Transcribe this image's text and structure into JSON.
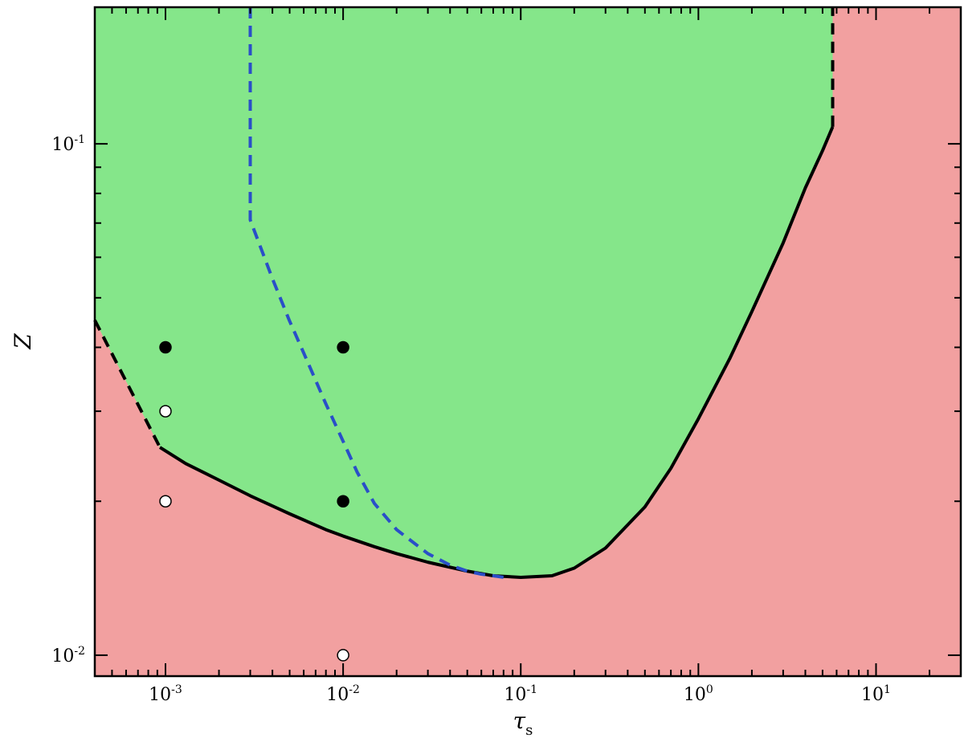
{
  "chart_data": {
    "type": "area",
    "title": "",
    "xlabel": "τ",
    "xlabel_subscript": "s",
    "ylabel": "Z",
    "xscale": "log",
    "yscale": "log",
    "xlim": [
      0.0004,
      30
    ],
    "ylim": [
      0.0091,
      0.185
    ],
    "grid": false,
    "x_ticks": [
      {
        "value": 0.001,
        "base": "10",
        "exp": "-3"
      },
      {
        "value": 0.01,
        "base": "10",
        "exp": "-2"
      },
      {
        "value": 0.1,
        "base": "10",
        "exp": "-1"
      },
      {
        "value": 1,
        "base": "10",
        "exp": "0"
      },
      {
        "value": 10,
        "base": "10",
        "exp": "1"
      }
    ],
    "y_ticks": [
      {
        "value": 0.01,
        "base": "10",
        "exp": "-2"
      },
      {
        "value": 0.1,
        "base": "10",
        "exp": "-1"
      }
    ],
    "colors": {
      "unstable_region": "#f2a0a0",
      "stable_region": "#85e68a",
      "boundary": "#000000",
      "dashed_boundary": "#2a4fc8"
    },
    "series": [
      {
        "style": "solid",
        "x": [
          0.00093,
          0.0013,
          0.002,
          0.003,
          0.005,
          0.008,
          0.01,
          0.015,
          0.02,
          0.03,
          0.05,
          0.07,
          0.1,
          0.15,
          0.2,
          0.3,
          0.5,
          0.7,
          1,
          1.5,
          2,
          3,
          4,
          5,
          5.7
        ],
        "y": [
          0.0255,
          0.0237,
          0.022,
          0.0205,
          0.0189,
          0.0176,
          0.0171,
          0.0163,
          0.0158,
          0.0152,
          0.0146,
          0.0143,
          0.0142,
          0.0143,
          0.0148,
          0.0162,
          0.0195,
          0.0232,
          0.029,
          0.038,
          0.047,
          0.064,
          0.082,
          0.097,
          0.108
        ]
      },
      {
        "style": "dashed",
        "x": [
          0.0004,
          0.00093
        ],
        "y": [
          0.0452,
          0.0255
        ]
      },
      {
        "style": "dashed",
        "x": [
          5.7,
          5.7
        ],
        "y": [
          0.108,
          0.185
        ]
      },
      {
        "style": "dashed",
        "x": [
          0.003,
          0.003,
          0.004,
          0.005,
          0.006,
          0.008,
          0.01,
          0.012,
          0.015,
          0.02,
          0.03,
          0.04,
          0.05,
          0.06,
          0.07,
          0.08
        ],
        "y": [
          0.185,
          0.071,
          0.0545,
          0.045,
          0.039,
          0.031,
          0.0262,
          0.0228,
          0.0198,
          0.0176,
          0.0158,
          0.015,
          0.0146,
          0.0144,
          0.0143,
          0.0142
        ]
      },
      {
        "style": "filled-marker",
        "x": [
          0.001,
          0.01,
          0.01
        ],
        "y": [
          0.04,
          0.04,
          0.02
        ]
      },
      {
        "style": "open-marker",
        "x": [
          0.001,
          0.001,
          0.01
        ],
        "y": [
          0.03,
          0.02,
          0.01
        ]
      }
    ]
  }
}
